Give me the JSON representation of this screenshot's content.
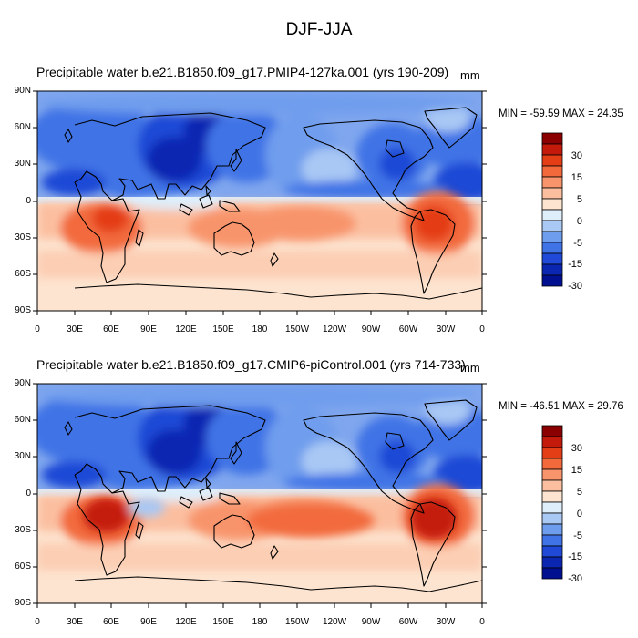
{
  "title": "DJF-JJA",
  "units": "mm",
  "variable": "Precipitable water",
  "lat_ticks": [
    "90N",
    "60N",
    "30N",
    "0",
    "30S",
    "60S",
    "90S"
  ],
  "lon_ticks": [
    "0",
    "30E",
    "60E",
    "90E",
    "120E",
    "150E",
    "180",
    "150W",
    "120W",
    "90W",
    "60W",
    "30W",
    "0"
  ],
  "colorbar": {
    "labels": [
      "30",
      "15",
      "5",
      "0",
      "-5",
      "-15",
      "-30"
    ],
    "colors": [
      "#8b0000",
      "#c41a0c",
      "#e43e16",
      "#f26a3c",
      "#f8946c",
      "#fbbfa0",
      "#fde4d0",
      "#deeefb",
      "#a9c8f4",
      "#6f9ded",
      "#3f73e6",
      "#1f49d6",
      "#0b27b2",
      "#001090"
    ]
  },
  "panels": [
    {
      "id": "top",
      "case": "b.e21.B1850.f09_g17.PMIP4-127ka.001 (yrs 190-209)",
      "min_max": "MIN = -59.59 MAX =  24.35"
    },
    {
      "id": "bottom",
      "case": "b.e21.B1850.f09_g17.CMIP6-piControl.001 (yrs 714-733)",
      "min_max": "MIN = -46.51 MAX =  29.76"
    }
  ]
}
